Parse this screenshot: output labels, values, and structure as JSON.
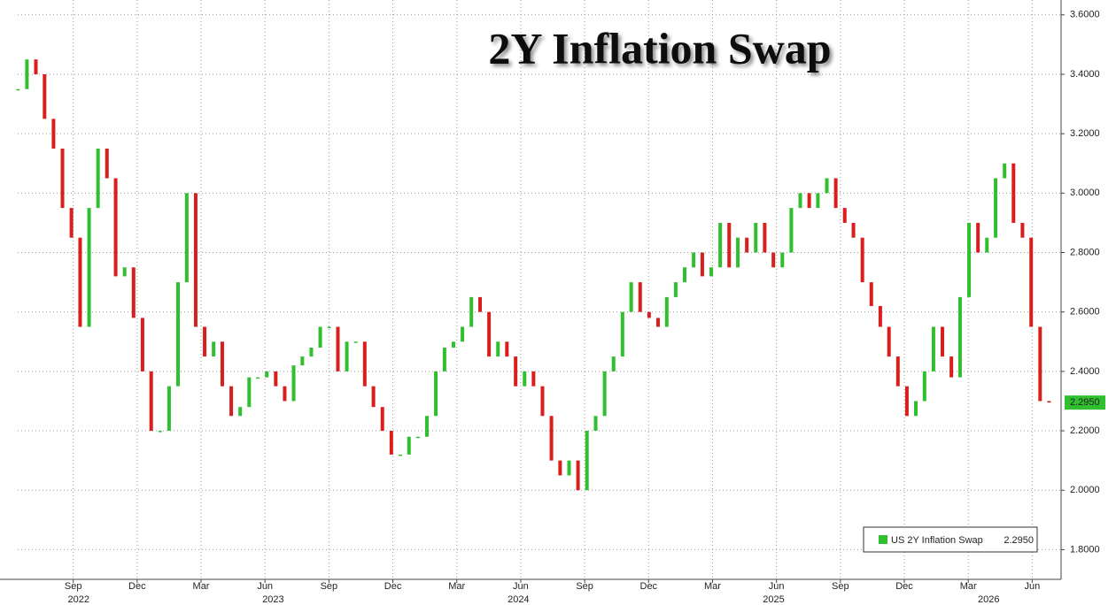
{
  "chart_data": {
    "type": "candlestick",
    "title": "2Y Inflation Swap",
    "xlim": [
      2022.45,
      2026.53
    ],
    "ylim": [
      1.7,
      3.65
    ],
    "grid": true,
    "up_color": "#2fbf2f",
    "down_color": "#d91e1e",
    "xticks": [
      {
        "value": 2022.667,
        "label": "Sep"
      },
      {
        "value": 2022.917,
        "label": "Dec"
      },
      {
        "value": 2023.167,
        "label": "Mar"
      },
      {
        "value": 2023.417,
        "label": "Jun"
      },
      {
        "value": 2023.667,
        "label": "Sep"
      },
      {
        "value": 2023.917,
        "label": "Dec"
      },
      {
        "value": 2024.167,
        "label": "Mar"
      },
      {
        "value": 2024.417,
        "label": "Jun"
      },
      {
        "value": 2024.667,
        "label": "Sep"
      },
      {
        "value": 2024.917,
        "label": "Dec"
      },
      {
        "value": 2025.167,
        "label": "Mar"
      },
      {
        "value": 2025.417,
        "label": "Jun"
      },
      {
        "value": 2025.667,
        "label": "Sep"
      },
      {
        "value": 2025.917,
        "label": "Dec"
      },
      {
        "value": 2026.167,
        "label": "Mar"
      },
      {
        "value": 2026.417,
        "label": "Jun"
      }
    ],
    "year_labels": [
      {
        "value": 2022.688,
        "label": "2022"
      },
      {
        "value": 2023.449,
        "label": "2023"
      },
      {
        "value": 2024.408,
        "label": "2024"
      },
      {
        "value": 2025.406,
        "label": "2025"
      },
      {
        "value": 2026.247,
        "label": "2026"
      }
    ],
    "yticks": [
      {
        "value": 1.8,
        "label": "1.8000"
      },
      {
        "value": 2.0,
        "label": "2.0000"
      },
      {
        "value": 2.2,
        "label": "2.2000"
      },
      {
        "value": 2.4,
        "label": "2.4000"
      },
      {
        "value": 2.6,
        "label": "2.6000"
      },
      {
        "value": 2.8,
        "label": "2.8000"
      },
      {
        "value": 3.0,
        "label": "3.0000"
      },
      {
        "value": 3.2,
        "label": "3.2000"
      },
      {
        "value": 3.4,
        "label": "3.4000"
      },
      {
        "value": 3.6,
        "label": "3.6000"
      }
    ],
    "last_price": {
      "value": 2.295,
      "label": "2.2950"
    },
    "series": [
      {
        "name": "US 2Y Inflation Swap",
        "color": "#2fbf2f",
        "x": [
          2022.451,
          2022.486,
          2022.521,
          2022.555,
          2022.59,
          2022.625,
          2022.66,
          2022.694,
          2022.729,
          2022.764,
          2022.799,
          2022.833,
          2022.868,
          2022.903,
          2022.938,
          2022.972,
          2023.007,
          2023.042,
          2023.077,
          2023.111,
          2023.146,
          2023.181,
          2023.216,
          2023.25,
          2023.285,
          2023.32,
          2023.355,
          2023.389,
          2023.424,
          2023.459,
          2023.494,
          2023.529,
          2023.563,
          2023.598,
          2023.633,
          2023.668,
          2023.702,
          2023.737,
          2023.772,
          2023.807,
          2023.841,
          2023.876,
          2023.911,
          2023.946,
          2023.98,
          2024.015,
          2024.05,
          2024.085,
          2024.119,
          2024.154,
          2024.189,
          2024.224,
          2024.258,
          2024.293,
          2024.328,
          2024.363,
          2024.397,
          2024.432,
          2024.467,
          2024.502,
          2024.537,
          2024.571,
          2024.606,
          2024.641,
          2024.676,
          2024.71,
          2024.745,
          2024.78,
          2024.815,
          2024.849,
          2024.884,
          2024.919,
          2024.954,
          2024.988,
          2025.023,
          2025.058,
          2025.093,
          2025.127,
          2025.162,
          2025.197,
          2025.232,
          2025.266,
          2025.301,
          2025.336,
          2025.371,
          2025.405,
          2025.44,
          2025.475,
          2025.51,
          2025.545,
          2025.579,
          2025.614,
          2025.649,
          2025.684,
          2025.718,
          2025.753,
          2025.788,
          2025.823,
          2025.857,
          2025.892,
          2025.927,
          2025.962,
          2025.996,
          2026.031,
          2026.066,
          2026.101,
          2026.135,
          2026.17,
          2026.205,
          2026.24,
          2026.274,
          2026.309,
          2026.344,
          2026.379,
          2026.413,
          2026.448,
          2026.483
        ],
        "values": [
          3.35,
          3.45,
          3.4,
          3.25,
          3.15,
          2.95,
          2.85,
          2.55,
          2.95,
          3.15,
          3.05,
          2.72,
          2.75,
          2.58,
          2.4,
          2.2,
          2.2,
          2.35,
          2.7,
          3.0,
          2.55,
          2.45,
          2.5,
          2.35,
          2.25,
          2.28,
          2.38,
          2.38,
          2.4,
          2.35,
          2.3,
          2.42,
          2.45,
          2.48,
          2.55,
          2.55,
          2.4,
          2.5,
          2.5,
          2.35,
          2.28,
          2.2,
          2.12,
          2.12,
          2.18,
          2.18,
          2.25,
          2.4,
          2.48,
          2.5,
          2.55,
          2.65,
          2.6,
          2.45,
          2.5,
          2.45,
          2.35,
          2.4,
          2.35,
          2.25,
          2.1,
          2.05,
          2.1,
          2.0,
          2.2,
          2.25,
          2.4,
          2.45,
          2.6,
          2.7,
          2.6,
          2.58,
          2.55,
          2.65,
          2.7,
          2.75,
          2.8,
          2.72,
          2.75,
          2.9,
          2.75,
          2.85,
          2.8,
          2.9,
          2.8,
          2.75,
          2.8,
          2.95,
          3.0,
          2.95,
          3.0,
          3.05,
          2.95,
          2.9,
          2.85,
          2.7,
          2.62,
          2.55,
          2.45,
          2.35,
          2.25,
          2.3,
          2.4,
          2.55,
          2.45,
          2.38,
          2.65,
          2.9,
          2.8,
          2.85,
          3.05,
          3.1,
          2.9,
          2.85,
          2.55,
          2.3,
          2.295
        ]
      }
    ]
  }
}
